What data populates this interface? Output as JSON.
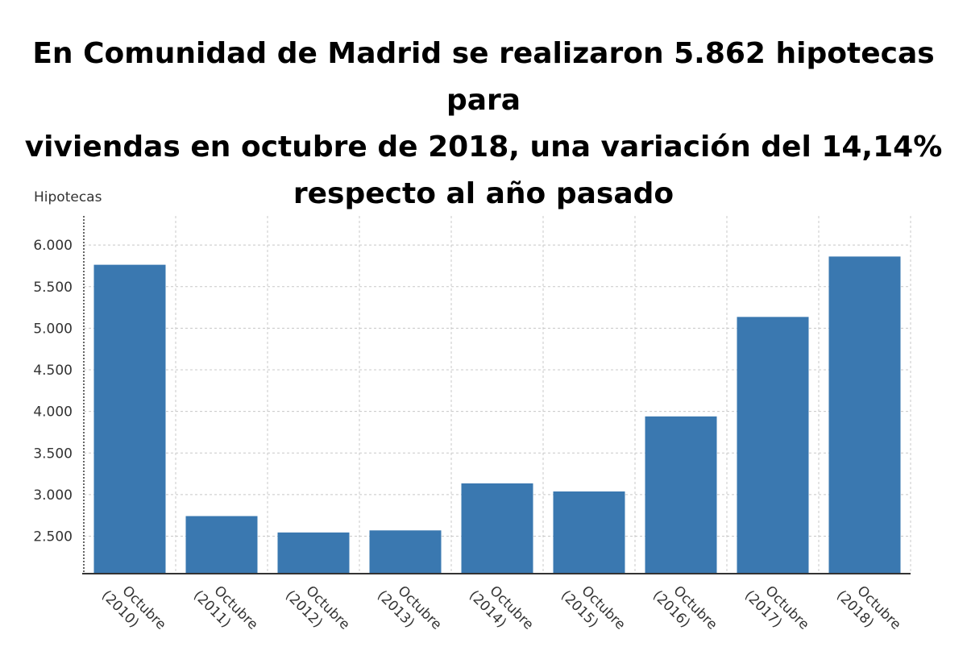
{
  "title_lines": [
    "En Comunidad de Madrid se realizaron 5.862 hipotecas para",
    "viviendas en octubre de 2018, una variación del 14,14%",
    "respecto al año pasado"
  ],
  "chart_data": {
    "type": "bar",
    "title": "En Comunidad de Madrid se realizaron 5.862 hipotecas para viviendas en octubre de 2018, una variación del 14,14% respecto al año pasado",
    "ylabel": "Hipotecas",
    "xlabel": "",
    "categories": [
      [
        "Octubre",
        "(2010)"
      ],
      [
        "Octubre",
        "(2011)"
      ],
      [
        "Octubre",
        "(2012)"
      ],
      [
        "Octubre",
        "(2013)"
      ],
      [
        "Octubre",
        "(2014)"
      ],
      [
        "Octubre",
        "(2015)"
      ],
      [
        "Octubre",
        "(2016)"
      ],
      [
        "Octubre",
        "(2017)"
      ],
      [
        "Octubre",
        "(2018)"
      ]
    ],
    "values": [
      5763,
      2742,
      2545,
      2570,
      3135,
      3038,
      3940,
      5136,
      5862
    ],
    "ylim": [
      2050,
      6350
    ],
    "yticks": [
      2500,
      3000,
      3500,
      4000,
      4500,
      5000,
      5500,
      6000
    ],
    "ytick_labels": [
      "2.500",
      "3.000",
      "3.500",
      "4.000",
      "4.500",
      "5.000",
      "5.500",
      "6.000"
    ],
    "grid": true,
    "colors": {
      "bar": "#3a78b0",
      "grid": "#c8c8c8",
      "axis": "#333333"
    }
  }
}
